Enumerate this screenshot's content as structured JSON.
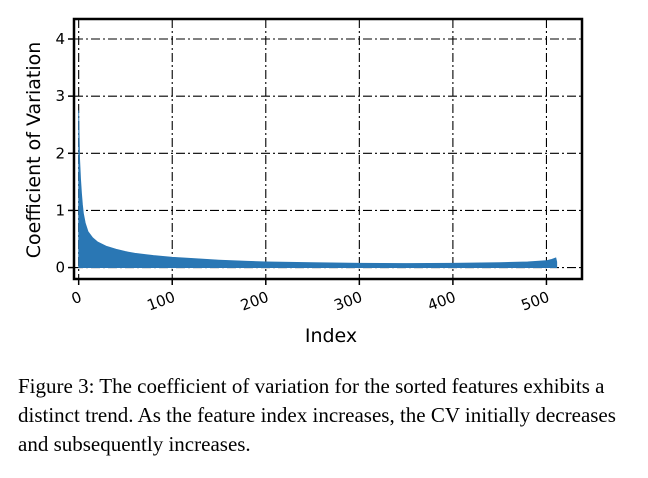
{
  "caption": "Figure 3: The coefficient of variation for the sorted features exhibits a distinct trend. As the feature index increases, the CV initially decreases and subsequently increases.",
  "chart_data": {
    "type": "area",
    "xlabel": "Index",
    "ylabel": "Coefficient of Variation",
    "xlim": [
      -5,
      538
    ],
    "ylim": [
      -0.2,
      4.35
    ],
    "xticks": [
      0,
      100,
      200,
      300,
      400,
      500
    ],
    "yticks": [
      0,
      1,
      2,
      3,
      4
    ],
    "grid": true,
    "colors": {
      "fill": "#2a77b4",
      "grid": "#000000",
      "frame": "#000000"
    },
    "series": [
      {
        "x": [
          0,
          1,
          2,
          3,
          4,
          5,
          7,
          10,
          15,
          20,
          30,
          40,
          50,
          60,
          80,
          100,
          120,
          150,
          180,
          200,
          250,
          300,
          350,
          400,
          450,
          480,
          500,
          505,
          510,
          511
        ],
        "y": [
          2.75,
          1.9,
          1.55,
          1.3,
          1.1,
          0.95,
          0.78,
          0.63,
          0.52,
          0.45,
          0.37,
          0.32,
          0.28,
          0.25,
          0.21,
          0.18,
          0.16,
          0.13,
          0.11,
          0.1,
          0.085,
          0.075,
          0.07,
          0.075,
          0.085,
          0.1,
          0.12,
          0.14,
          0.17,
          0.1
        ]
      }
    ]
  }
}
